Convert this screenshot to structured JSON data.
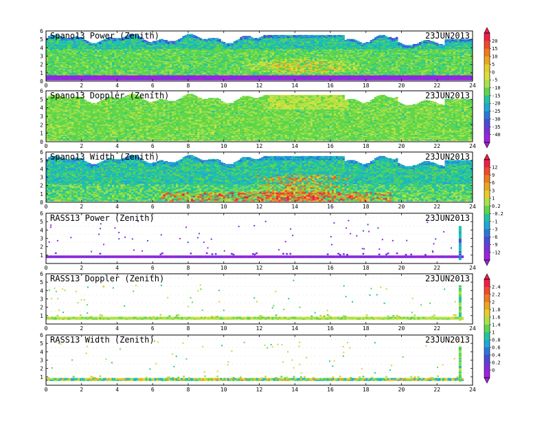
{
  "chart_data": [
    {
      "type": "heatmap",
      "title": "Spano13 Power (Zenith)",
      "date": "23JUN2013",
      "xlim": [
        0,
        24
      ],
      "ylim": [
        0,
        6
      ],
      "x_ticks": [
        0,
        2,
        4,
        6,
        8,
        10,
        12,
        14,
        16,
        18,
        20,
        22,
        24
      ],
      "y_ticks": [
        0,
        1,
        2,
        3,
        4,
        5,
        6
      ],
      "colorbar": "cb1",
      "field": "profiler_power"
    },
    {
      "type": "heatmap",
      "title": "Spano13 Doppler (Zenith)",
      "date": "23JUN2013",
      "xlim": [
        0,
        24
      ],
      "ylim": [
        0,
        6
      ],
      "x_ticks": [
        0,
        2,
        4,
        6,
        8,
        10,
        12,
        14,
        16,
        18,
        20,
        22,
        24
      ],
      "y_ticks": [
        0,
        1,
        2,
        3,
        4,
        5,
        6
      ],
      "colorbar": "cb1",
      "field": "profiler_doppler"
    },
    {
      "type": "heatmap",
      "title": "Spano13 Width (Zenith)",
      "date": "23JUN2013",
      "xlim": [
        0,
        24
      ],
      "ylim": [
        0,
        6
      ],
      "x_ticks": [
        0,
        2,
        4,
        6,
        8,
        10,
        12,
        14,
        16,
        18,
        20,
        22,
        24
      ],
      "y_ticks": [
        0,
        1,
        2,
        3,
        4,
        5,
        6
      ],
      "colorbar": "cb2",
      "field": "profiler_width"
    },
    {
      "type": "heatmap",
      "title": "RASS13 Power (Zenith)",
      "date": "23JUN2013",
      "xlim": [
        0,
        24
      ],
      "ylim": [
        0,
        6
      ],
      "x_ticks": [
        0,
        2,
        4,
        6,
        8,
        10,
        12,
        14,
        16,
        18,
        20,
        22,
        24
      ],
      "y_ticks": [
        1,
        2,
        3,
        4,
        5,
        6
      ],
      "colorbar": "cb2",
      "field": "rass_power"
    },
    {
      "type": "heatmap",
      "title": "RASS13 Doppler (Zenith)",
      "date": "23JUN2013",
      "xlim": [
        0,
        24
      ],
      "ylim": [
        0,
        6
      ],
      "x_ticks": [
        0,
        2,
        4,
        6,
        8,
        10,
        12,
        14,
        16,
        18,
        20,
        22,
        24
      ],
      "y_ticks": [
        1,
        2,
        3,
        4,
        5,
        6
      ],
      "colorbar": "cb3",
      "field": "rass_doppler"
    },
    {
      "type": "heatmap",
      "title": "RASS13 Width (Zenith)",
      "date": "23JUN2013",
      "xlim": [
        0,
        24
      ],
      "ylim": [
        0,
        6
      ],
      "x_ticks": [
        0,
        2,
        4,
        6,
        8,
        10,
        12,
        14,
        16,
        18,
        20,
        22,
        24
      ],
      "y_ticks": [
        1,
        2,
        3,
        4,
        5,
        6
      ],
      "colorbar": "cb3",
      "field": "rass_width"
    }
  ],
  "colorbars": {
    "cb1": {
      "labels": [
        "20",
        "15",
        "10",
        "5",
        "0",
        "-5",
        "-10",
        "-15",
        "-20",
        "-25",
        "-30",
        "-35",
        "-40"
      ],
      "colors": [
        "#f21c4a",
        "#f04a2a",
        "#f07a1e",
        "#eaa61e",
        "#e8cc2a",
        "#d8e03a",
        "#a8e24a",
        "#5ed64a",
        "#22c4a0",
        "#1ea8d8",
        "#2878d8",
        "#4a4ad8",
        "#7a30d8",
        "#a020e0"
      ]
    },
    "cb2": {
      "labels": [
        "12",
        "9",
        "6",
        "3",
        "1",
        "0.2",
        "-0.2",
        "-1",
        "-3",
        "-6",
        "-9",
        "-12"
      ],
      "colors": [
        "#f21c4a",
        "#f04a2a",
        "#f07a1e",
        "#eaa61e",
        "#e8cc2a",
        "#a8e24a",
        "#5ed64a",
        "#22c4a0",
        "#1ea8d8",
        "#2878d8",
        "#4a4ad8",
        "#7a30d8",
        "#a020e0"
      ]
    },
    "cb3": {
      "labels": [
        "2.4",
        "2.2",
        "2",
        "1.8",
        "1.6",
        "1.4",
        "1",
        "0.8",
        "0.6",
        "0.4",
        "0.2",
        "0"
      ],
      "colors": [
        "#f21c4a",
        "#f04a2a",
        "#f07a1e",
        "#eaa61e",
        "#e8cc2a",
        "#a8e24a",
        "#5ed64a",
        "#22c4a0",
        "#1ea8d8",
        "#2878d8",
        "#4a4ad8",
        "#7a30d8",
        "#a020e0"
      ]
    }
  }
}
